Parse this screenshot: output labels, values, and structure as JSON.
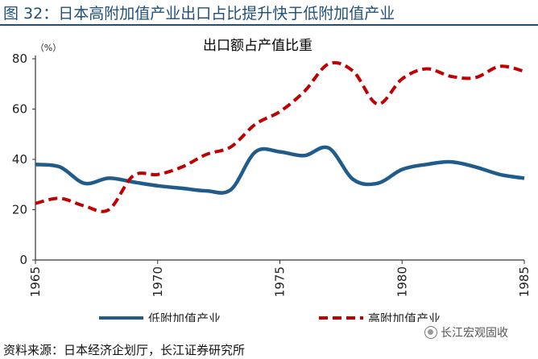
{
  "figure": {
    "title": "图 32：日本高附加值产业出口占比提升快于低附加值产业",
    "source": "资料来源：日本经济企划厅，长江证券研究所",
    "watermark": "长江宏观固收",
    "watermark_icon": "wechat-icon"
  },
  "chart_data": {
    "type": "line",
    "title": "出口额占产值比重",
    "ylabel": "（%）",
    "xlabel": "",
    "xlim": [
      1965,
      1985
    ],
    "ylim": [
      0,
      80
    ],
    "y_ticks": [
      "0",
      "20",
      "40",
      "60",
      "80"
    ],
    "x_ticks": [
      "1965",
      "1970",
      "1975",
      "1980",
      "1985"
    ],
    "legend_position": "bottom",
    "grid": false,
    "x": [
      1965,
      1966,
      1967,
      1968,
      1969,
      1970,
      1971,
      1972,
      1973,
      1974,
      1975,
      1976,
      1977,
      1978,
      1979,
      1980,
      1981,
      1982,
      1983,
      1984,
      1985
    ],
    "series": [
      {
        "name": "低附加值产业",
        "color": "#1f5c8b",
        "style": "solid",
        "values": [
          38,
          37,
          30.5,
          32.5,
          31,
          29.5,
          28.5,
          27.5,
          28,
          43,
          43,
          41.5,
          44.5,
          32,
          30.5,
          36,
          38,
          39,
          37,
          34,
          32.5
        ]
      },
      {
        "name": "高附加值产业",
        "color": "#c00000",
        "style": "dashed",
        "values": [
          22.5,
          24.5,
          21.5,
          20,
          33.5,
          34,
          37,
          42,
          45,
          54,
          59,
          67,
          78,
          75,
          62,
          72,
          76,
          73,
          72.5,
          77,
          75
        ]
      }
    ]
  }
}
